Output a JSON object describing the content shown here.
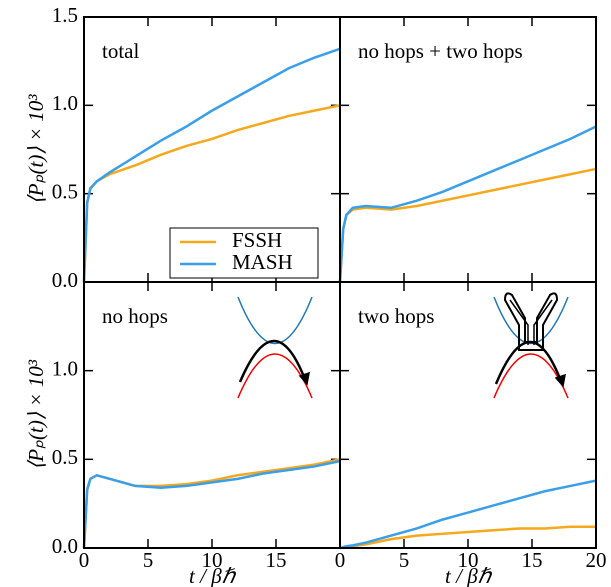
{
  "chart_data": [
    {
      "type": "line",
      "annotation": "total",
      "ylabel": "⟨Pₚ(t)⟩ × 10³",
      "x": [
        0,
        0.25,
        0.5,
        1,
        2,
        4,
        6,
        8,
        10,
        12,
        14,
        16,
        18,
        20
      ],
      "series": [
        {
          "name": "FSSH",
          "color": "#f5a81c",
          "values": [
            0,
            0.45,
            0.53,
            0.57,
            0.61,
            0.66,
            0.72,
            0.77,
            0.81,
            0.86,
            0.9,
            0.94,
            0.97,
            1.0
          ]
        },
        {
          "name": "MASH",
          "color": "#3a9ee8",
          "values": [
            0,
            0.45,
            0.53,
            0.57,
            0.62,
            0.71,
            0.8,
            0.88,
            0.97,
            1.05,
            1.13,
            1.21,
            1.27,
            1.32
          ]
        }
      ],
      "xlim": [
        0,
        20
      ],
      "ylim": [
        0,
        1.5
      ],
      "yticks": [
        {
          "value": 0,
          "label": "0.0"
        },
        0.5,
        {
          "value": 1,
          "label": "1.0"
        },
        1.5
      ],
      "legend": "lower right"
    },
    {
      "type": "line",
      "annotation": "no hops + two hops",
      "x": [
        0,
        0.25,
        0.5,
        1,
        2,
        4,
        6,
        8,
        10,
        12,
        14,
        16,
        18,
        20
      ],
      "series": [
        {
          "color": "#f5a81c",
          "values": [
            0,
            0.3,
            0.38,
            0.41,
            0.42,
            0.41,
            0.43,
            0.46,
            0.49,
            0.52,
            0.55,
            0.58,
            0.61,
            0.64
          ]
        },
        {
          "color": "#3a9ee8",
          "values": [
            0,
            0.3,
            0.38,
            0.42,
            0.43,
            0.42,
            0.46,
            0.51,
            0.57,
            0.63,
            0.69,
            0.75,
            0.81,
            0.88
          ]
        }
      ],
      "xlim": [
        0,
        20
      ],
      "ylim": [
        0,
        1.5
      ]
    },
    {
      "type": "line",
      "annotation": "no hops",
      "ylabel": "⟨Pₚ(t)⟩ × 10³",
      "xlabel": "t / βℏ",
      "x": [
        0,
        0.25,
        0.5,
        1,
        2,
        4,
        6,
        8,
        10,
        12,
        14,
        16,
        18,
        20
      ],
      "series": [
        {
          "color": "#f5a81c",
          "values": [
            0,
            0.33,
            0.39,
            0.41,
            0.39,
            0.35,
            0.35,
            0.36,
            0.38,
            0.41,
            0.43,
            0.45,
            0.47,
            0.5
          ]
        },
        {
          "color": "#3a9ee8",
          "values": [
            0,
            0.33,
            0.39,
            0.41,
            0.39,
            0.35,
            0.34,
            0.35,
            0.37,
            0.39,
            0.42,
            0.44,
            0.46,
            0.49
          ]
        }
      ],
      "xlim": [
        0,
        20
      ],
      "ylim": [
        0,
        1.5
      ],
      "xticks": [
        0,
        5,
        10,
        15
      ],
      "yticks": [
        {
          "value": 0,
          "label": "0.0"
        },
        0.5,
        {
          "value": 1,
          "label": "1.0"
        }
      ]
    },
    {
      "type": "line",
      "annotation": "two hops",
      "xlabel": "t / βℏ",
      "x": [
        0,
        0.25,
        0.5,
        1,
        2,
        4,
        6,
        8,
        10,
        12,
        14,
        16,
        18,
        20
      ],
      "series": [
        {
          "color": "#f5a81c",
          "values": [
            0,
            0.003,
            0.005,
            0.01,
            0.02,
            0.05,
            0.07,
            0.08,
            0.09,
            0.1,
            0.11,
            0.11,
            0.12,
            0.12
          ]
        },
        {
          "color": "#3a9ee8",
          "values": [
            0,
            0.005,
            0.01,
            0.015,
            0.03,
            0.07,
            0.11,
            0.16,
            0.2,
            0.24,
            0.28,
            0.32,
            0.35,
            0.38
          ]
        }
      ],
      "xlim": [
        0,
        20
      ],
      "ylim": [
        0,
        1.5
      ],
      "xticks": [
        0,
        5,
        10,
        15,
        20
      ]
    }
  ]
}
